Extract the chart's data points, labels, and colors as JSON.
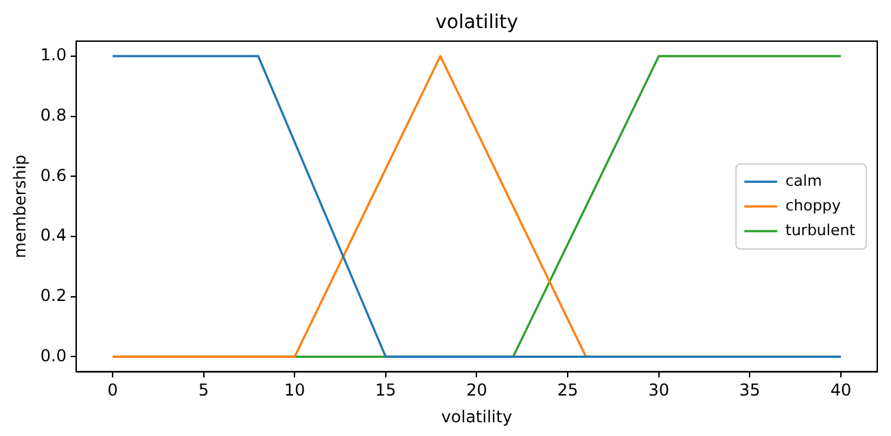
{
  "chart_data": {
    "type": "line",
    "title": "volatility",
    "xlabel": "volatility",
    "ylabel": "membership",
    "xlim": [
      -2,
      42
    ],
    "xticks": [
      0,
      5,
      10,
      15,
      20,
      25,
      30,
      35,
      40
    ],
    "ylim": [
      -0.05,
      1.05
    ],
    "yticks": [
      {
        "value": 0,
        "label": "0.0"
      },
      {
        "value": 0.2,
        "label": "0.2"
      },
      {
        "value": 0.4,
        "label": "0.4"
      },
      {
        "value": 0.6,
        "label": "0.6"
      },
      {
        "value": 0.8,
        "label": "0.8"
      },
      {
        "value": 1,
        "label": "1.0"
      }
    ],
    "grid": false,
    "legend": "right",
    "marker": "none",
    "line_style": "solid",
    "series": [
      {
        "name": "calm",
        "color": "#1f77b4",
        "x": [
          0,
          8,
          15,
          40
        ],
        "values": [
          1,
          1,
          0,
          0
        ]
      },
      {
        "name": "choppy",
        "color": "#ff7f0e",
        "x": [
          0,
          10,
          18,
          26,
          40
        ],
        "values": [
          0,
          0,
          1,
          0,
          0
        ]
      },
      {
        "name": "turbulent",
        "color": "#2ca02c",
        "x": [
          0,
          22,
          30,
          40
        ],
        "values": [
          0,
          0,
          1,
          1
        ]
      }
    ]
  }
}
